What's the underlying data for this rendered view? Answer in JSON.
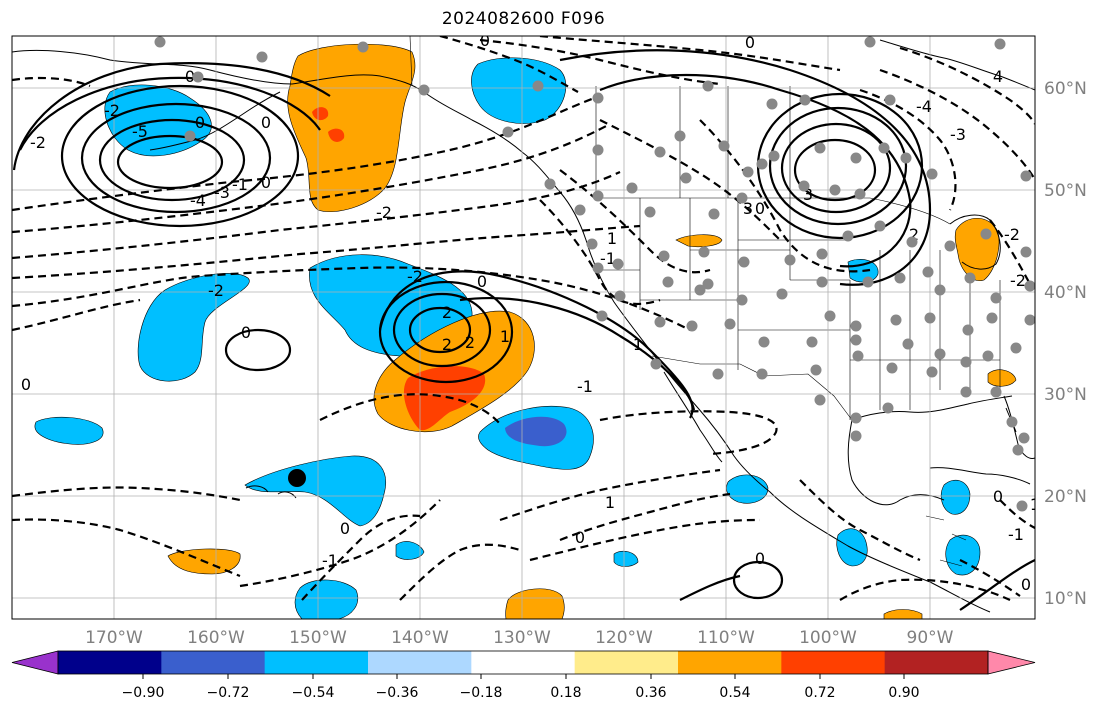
{
  "title": "2024082600 F096",
  "map": {
    "lon_labels": [
      "170°W",
      "160°W",
      "150°W",
      "140°W",
      "130°W",
      "120°W",
      "110°W",
      "100°W",
      "90°W"
    ],
    "lat_labels": [
      "60°N",
      "50°N",
      "40°N",
      "30°N",
      "20°N",
      "10°N"
    ],
    "contour_labels": [
      "0",
      "0",
      "-2",
      "-5",
      "-4",
      "-3",
      "-2",
      "0",
      "2",
      "-2",
      "-2",
      "0",
      "0",
      "0",
      "-2",
      "2",
      "2",
      "1",
      "1",
      "-1",
      "0",
      "0",
      "0",
      "1",
      "-1",
      "1",
      "0",
      "-1",
      "0",
      "0",
      "3",
      "4",
      "3",
      "0",
      "-3",
      "-4",
      "2",
      "-2",
      "-2",
      "0",
      "-1",
      "1",
      "0",
      "-1"
    ]
  },
  "colorbar": {
    "tick_labels": [
      "−0.90",
      "−0.72",
      "−0.54",
      "−0.36",
      "−0.18",
      "0.18",
      "0.36",
      "0.54",
      "0.72",
      "0.90"
    ],
    "colors": [
      "#9932cc",
      "#00008b",
      "#3a5fcd",
      "#00bfff",
      "#add8ff",
      "#ffffff",
      "#ffec8b",
      "#ffa500",
      "#ff4000",
      "#b22222",
      "#ff88aa"
    ]
  }
}
